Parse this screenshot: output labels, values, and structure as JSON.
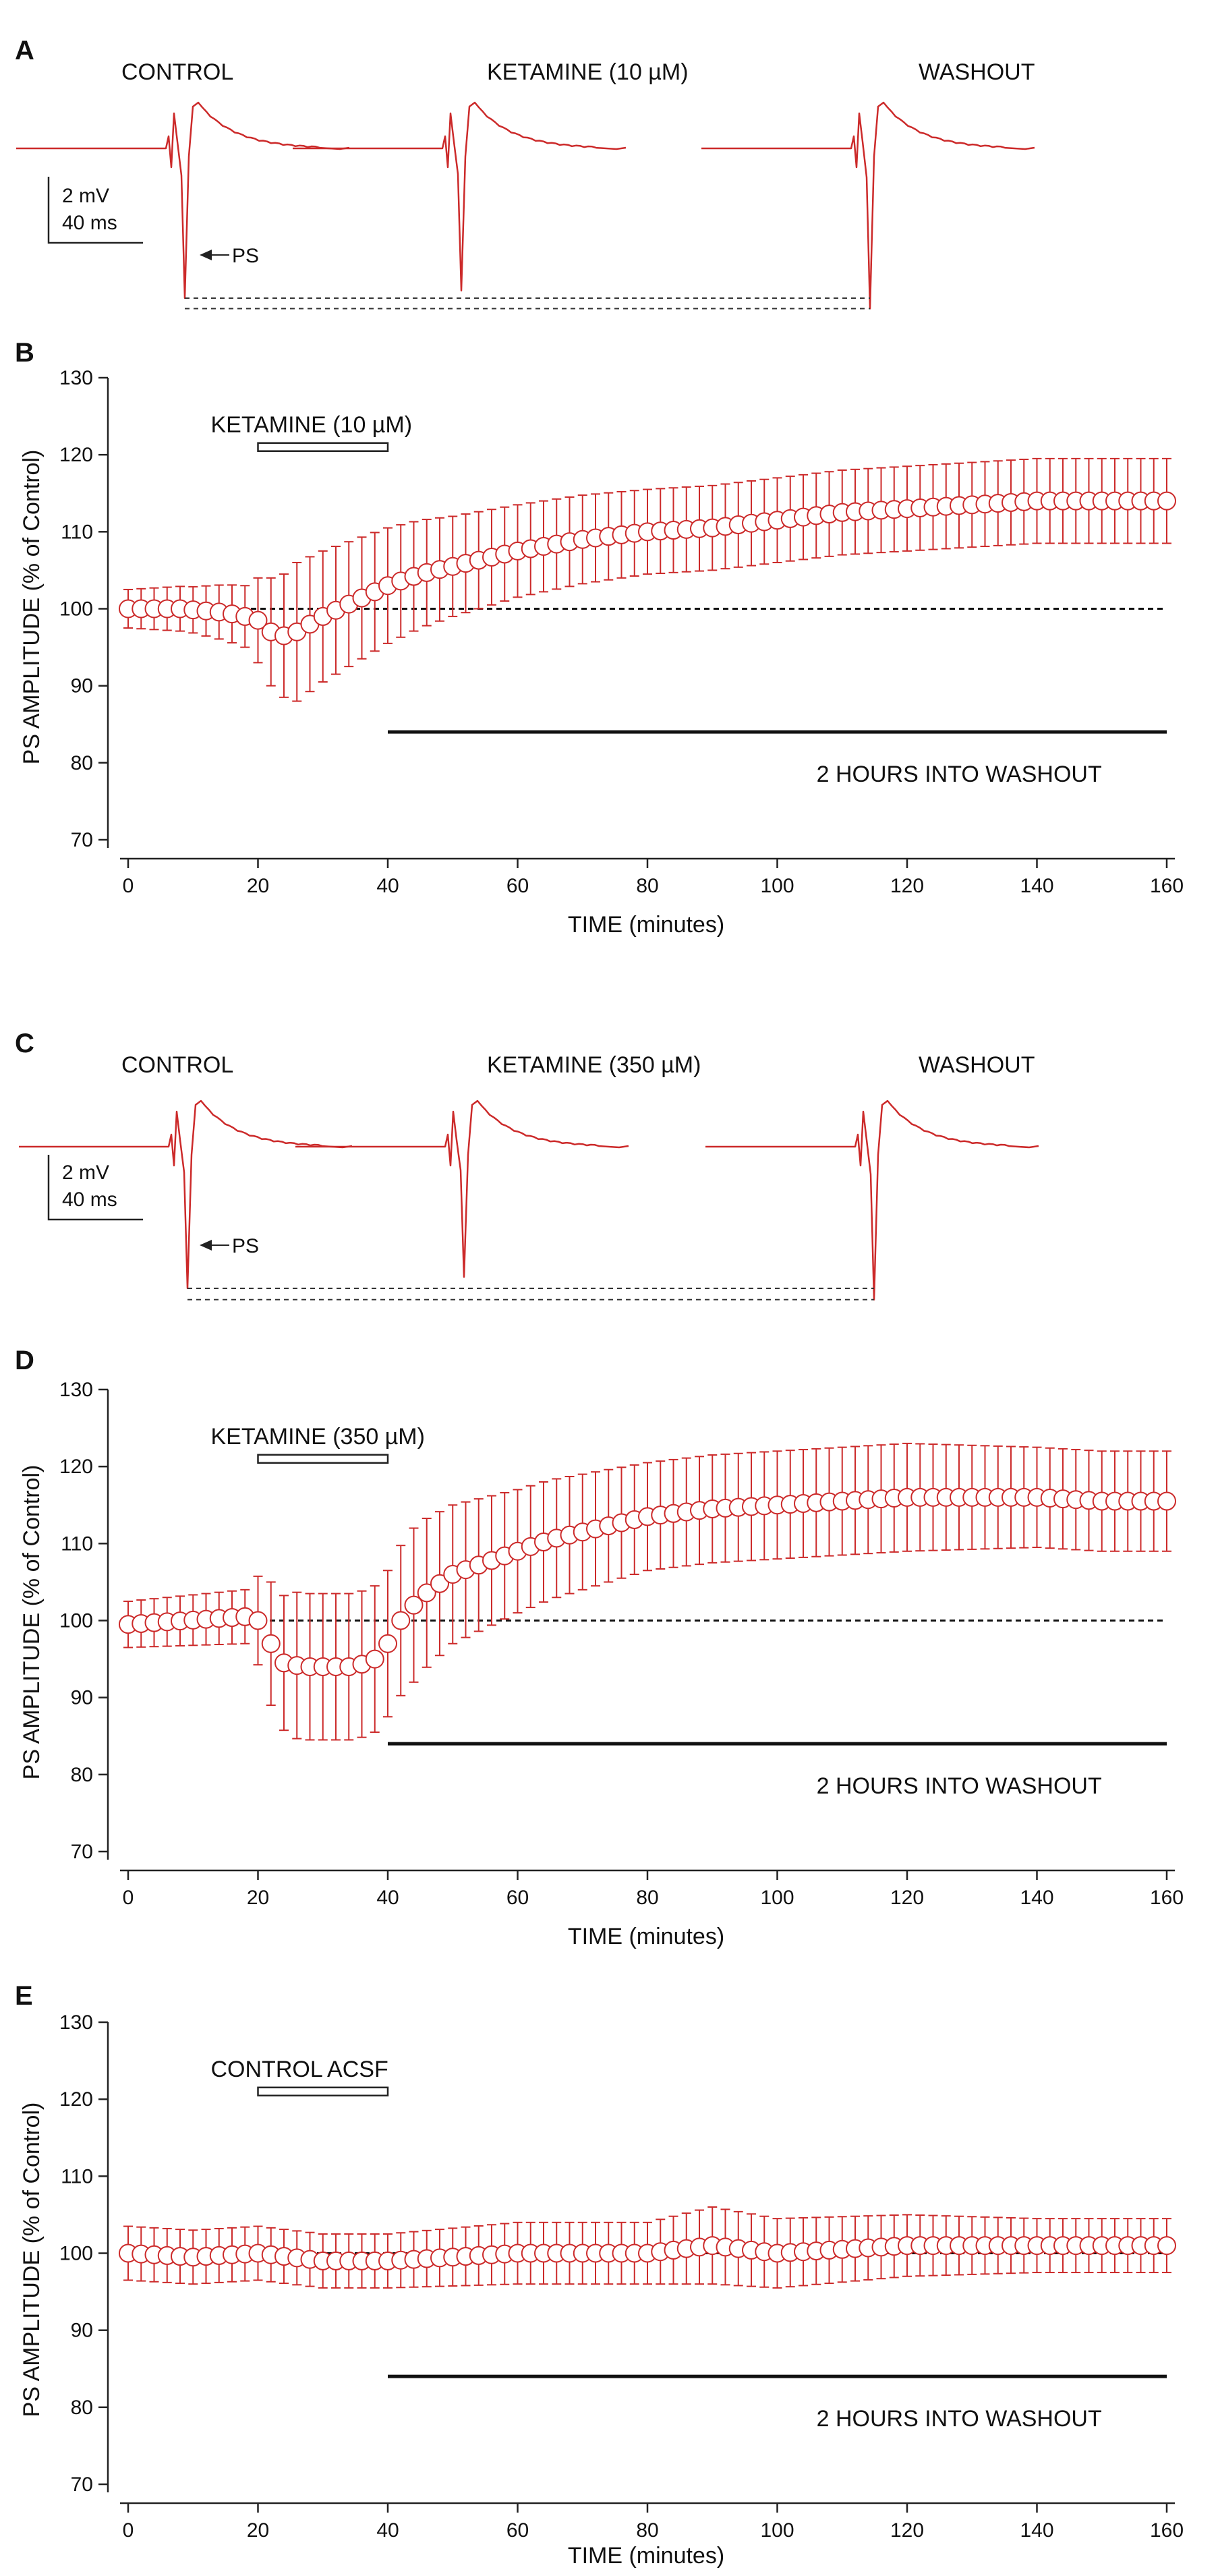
{
  "figure": {
    "colors": {
      "trace": "#cc2a2a",
      "marker_fill": "#ffffff",
      "axis": "#222222"
    }
  },
  "chart_data": [
    {
      "panel": "A",
      "type": "line",
      "description_kind": "electrophysiology traces",
      "conditions": [
        "CONTROL",
        "KETAMINE (10 µM)",
        "WASHOUT"
      ],
      "scale_bar": {
        "voltage": "2 mV",
        "time": "40 ms"
      },
      "annotation": "PS",
      "ps_trough_relative": [
        1.0,
        0.95,
        1.07
      ]
    },
    {
      "panel": "B",
      "type": "scatter",
      "title": "",
      "xlabel": "TIME  (minutes)",
      "ylabel": "PS AMPLITUDE  (% of Control)",
      "xlim": [
        0,
        160
      ],
      "ylim": [
        70,
        130
      ],
      "xticks": [
        0,
        20,
        40,
        60,
        80,
        100,
        120,
        140,
        160
      ],
      "yticks": [
        70,
        80,
        90,
        100,
        110,
        120,
        130
      ],
      "reference_line": 100,
      "drug_bar": {
        "label": "KETAMINE (10 µM)",
        "start": 20,
        "end": 40
      },
      "washout_bar": {
        "label": "2 HOURS INTO WASHOUT",
        "start": 40,
        "end": 160
      },
      "knots": {
        "mean": [
          [
            0,
            100
          ],
          [
            8,
            100
          ],
          [
            15,
            99.5
          ],
          [
            18,
            99
          ],
          [
            20,
            98.5
          ],
          [
            22,
            97
          ],
          [
            24,
            96.5
          ],
          [
            26,
            97
          ],
          [
            30,
            99
          ],
          [
            35,
            101
          ],
          [
            40,
            103
          ],
          [
            45,
            104.5
          ],
          [
            50,
            105.5
          ],
          [
            55,
            106.5
          ],
          [
            60,
            107.5
          ],
          [
            70,
            109
          ],
          [
            80,
            110
          ],
          [
            90,
            110.5
          ],
          [
            100,
            111.5
          ],
          [
            110,
            112.5
          ],
          [
            120,
            113
          ],
          [
            130,
            113.5
          ],
          [
            140,
            114
          ],
          [
            150,
            114
          ],
          [
            160,
            114
          ]
        ],
        "err": [
          [
            0,
            2.5
          ],
          [
            10,
            3
          ],
          [
            18,
            4
          ],
          [
            22,
            7
          ],
          [
            26,
            9
          ],
          [
            30,
            8.5
          ],
          [
            35,
            8
          ],
          [
            40,
            7.5
          ],
          [
            50,
            6.5
          ],
          [
            60,
            6
          ],
          [
            80,
            5.5
          ],
          [
            100,
            5.5
          ],
          [
            120,
            5.5
          ],
          [
            140,
            5.5
          ],
          [
            160,
            5.5
          ]
        ]
      }
    },
    {
      "panel": "C",
      "type": "line",
      "description_kind": "electrophysiology traces",
      "conditions": [
        "CONTROL",
        "KETAMINE (350 µM)",
        "WASHOUT"
      ],
      "scale_bar": {
        "voltage": "2 mV",
        "time": "40 ms"
      },
      "annotation": "PS",
      "ps_trough_relative": [
        1.0,
        0.92,
        1.08
      ]
    },
    {
      "panel": "D",
      "type": "scatter",
      "title": "",
      "xlabel": "TIME  (minutes)",
      "ylabel": "PS AMPLITUDE  (% of Control)",
      "xlim": [
        0,
        160
      ],
      "ylim": [
        70,
        130
      ],
      "xticks": [
        0,
        20,
        40,
        60,
        80,
        100,
        120,
        140,
        160
      ],
      "yticks": [
        70,
        80,
        90,
        100,
        110,
        120,
        130
      ],
      "reference_line": 100,
      "drug_bar": {
        "label": "KETAMINE (350 µM)",
        "start": 20,
        "end": 40
      },
      "washout_bar": {
        "label": "2 HOURS INTO WASHOUT",
        "start": 40,
        "end": 160
      },
      "knots": {
        "mean": [
          [
            0,
            99.5
          ],
          [
            18,
            100.5
          ],
          [
            20,
            100
          ],
          [
            22,
            97
          ],
          [
            24,
            94.5
          ],
          [
            27,
            94
          ],
          [
            30,
            94
          ],
          [
            35,
            94
          ],
          [
            38,
            95
          ],
          [
            40,
            97
          ],
          [
            42,
            100
          ],
          [
            45,
            103
          ],
          [
            50,
            106
          ],
          [
            55,
            107.5
          ],
          [
            60,
            109
          ],
          [
            65,
            110.5
          ],
          [
            70,
            111.5
          ],
          [
            80,
            113.5
          ],
          [
            90,
            114.5
          ],
          [
            100,
            115
          ],
          [
            110,
            115.5
          ],
          [
            120,
            116
          ],
          [
            130,
            116
          ],
          [
            140,
            116
          ],
          [
            150,
            115.5
          ],
          [
            160,
            115.5
          ]
        ],
        "err": [
          [
            0,
            3
          ],
          [
            18,
            3.5
          ],
          [
            22,
            8
          ],
          [
            26,
            9.5
          ],
          [
            35,
            9.5
          ],
          [
            40,
            9.5
          ],
          [
            44,
            10
          ],
          [
            50,
            9
          ],
          [
            60,
            8
          ],
          [
            80,
            7
          ],
          [
            100,
            7
          ],
          [
            120,
            7
          ],
          [
            140,
            6.5
          ],
          [
            160,
            6.5
          ]
        ]
      }
    },
    {
      "panel": "E",
      "type": "scatter",
      "title": "",
      "xlabel": "TIME  (minutes)",
      "ylabel": "PS AMPLITUDE  (% of Control)",
      "xlim": [
        0,
        160
      ],
      "ylim": [
        70,
        130
      ],
      "xticks": [
        0,
        20,
        40,
        60,
        80,
        100,
        120,
        140,
        160
      ],
      "yticks": [
        70,
        80,
        90,
        100,
        110,
        120,
        130
      ],
      "reference_line": 100,
      "drug_bar": {
        "label": "CONTROL ACSF",
        "start": 20,
        "end": 40
      },
      "washout_bar": {
        "label": "2 HOURS INTO WASHOUT",
        "start": 40,
        "end": 160
      },
      "knots": {
        "mean": [
          [
            0,
            100
          ],
          [
            10,
            99.5
          ],
          [
            20,
            100
          ],
          [
            30,
            99
          ],
          [
            40,
            99
          ],
          [
            50,
            99.5
          ],
          [
            60,
            100
          ],
          [
            70,
            100
          ],
          [
            80,
            100
          ],
          [
            90,
            101
          ],
          [
            100,
            100
          ],
          [
            110,
            100.5
          ],
          [
            120,
            101
          ],
          [
            130,
            101
          ],
          [
            140,
            101
          ],
          [
            150,
            101
          ],
          [
            160,
            101
          ]
        ],
        "err": [
          [
            0,
            3.5
          ],
          [
            20,
            3.5
          ],
          [
            40,
            3.5
          ],
          [
            60,
            4
          ],
          [
            80,
            4
          ],
          [
            90,
            5
          ],
          [
            100,
            4.5
          ],
          [
            120,
            4
          ],
          [
            140,
            3.5
          ],
          [
            160,
            3.5
          ]
        ]
      }
    }
  ]
}
